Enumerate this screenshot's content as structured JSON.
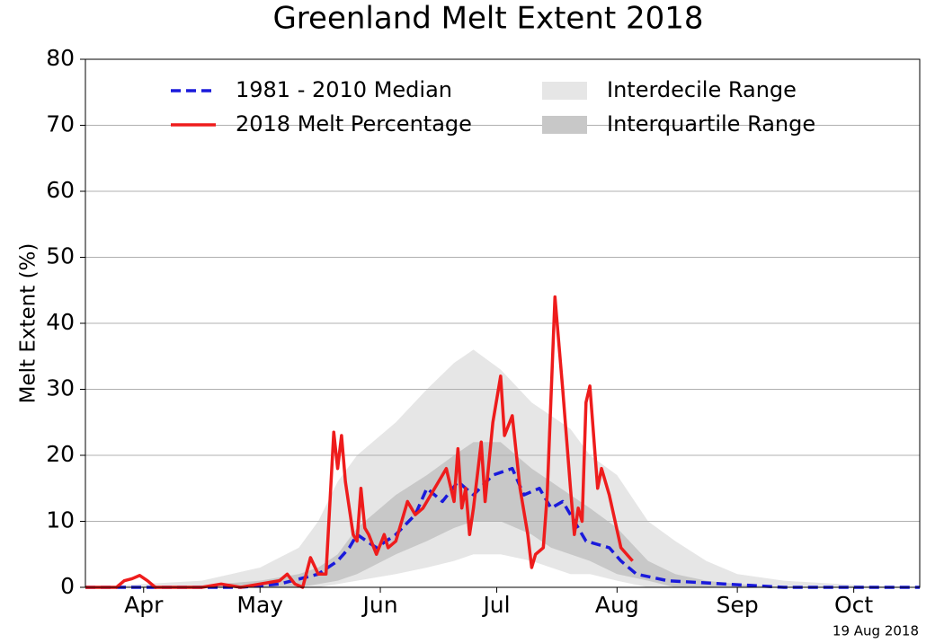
{
  "chart_data": {
    "type": "line",
    "title": "Greenland Melt Extent 2018",
    "y_label": "Melt Extent (%)",
    "annotation": "19 Aug 2018",
    "xlim": [
      90,
      305
    ],
    "xticks": [
      {
        "value": 105,
        "label": "Apr"
      },
      {
        "value": 135,
        "label": "May"
      },
      {
        "value": 166,
        "label": "Jun"
      },
      {
        "value": 196,
        "label": "Jul"
      },
      {
        "value": 227,
        "label": "Aug"
      },
      {
        "value": 258,
        "label": "Sep"
      },
      {
        "value": 288,
        "label": "Oct"
      }
    ],
    "ylim": [
      0,
      80
    ],
    "yticks": [
      0,
      10,
      20,
      30,
      40,
      50,
      60,
      70,
      80
    ],
    "grid": true,
    "legend": "top",
    "series": [
      {
        "name": "1981 - 2010 Median",
        "color": "#1a1adb",
        "style": "dashed",
        "x": [
          90,
          130,
          140,
          150,
          155,
          158,
          160,
          165,
          170,
          175,
          178,
          182,
          186,
          190,
          195,
          200,
          203,
          207,
          210,
          213,
          216,
          219,
          225,
          228,
          232,
          240,
          255,
          270,
          305
        ],
        "values": [
          0,
          0,
          0.5,
          2,
          4,
          6,
          8,
          6,
          8,
          11,
          15,
          13,
          16,
          14,
          17,
          18,
          14,
          15,
          12,
          13,
          10,
          7,
          6,
          4,
          2,
          1,
          0.5,
          0,
          0
        ]
      },
      {
        "name": "2018 Melt Percentage",
        "color": "#ee1c1c",
        "style": "solid",
        "x": [
          90,
          98,
          100,
          102,
          104,
          106,
          108,
          112,
          120,
          125,
          130,
          135,
          140,
          142,
          144,
          146,
          148,
          150,
          152,
          154,
          155,
          156,
          157,
          159,
          160,
          161,
          162,
          163,
          165,
          167,
          168,
          170,
          173,
          175,
          177,
          180,
          183,
          185,
          186,
          187,
          188,
          189,
          190,
          192,
          193,
          195,
          197,
          198,
          200,
          202,
          204,
          205,
          206,
          208,
          209,
          211,
          213,
          215,
          216,
          217,
          218,
          219,
          220,
          222,
          223,
          225,
          228,
          231
        ],
        "values": [
          0,
          0,
          1,
          1.3,
          1.8,
          1,
          0,
          0,
          0,
          0.5,
          0,
          0.5,
          1,
          2,
          0.5,
          0,
          4.5,
          2,
          2,
          23.5,
          18,
          23,
          16,
          8,
          7,
          15,
          9,
          8,
          5,
          8,
          6,
          7,
          13,
          11,
          12,
          15,
          18,
          13,
          21,
          12,
          15,
          8,
          12,
          22,
          13,
          25,
          32,
          23,
          26,
          15,
          8,
          3,
          5,
          6,
          14,
          44,
          30,
          15,
          8,
          12,
          10,
          28,
          30.5,
          15,
          18,
          14,
          6,
          4
        ]
      },
      {
        "name": "Interdecile Range",
        "color": "#e6e6e6",
        "style": "band",
        "x": [
          90,
          120,
          135,
          145,
          150,
          155,
          160,
          170,
          178,
          185,
          190,
          197,
          205,
          210,
          215,
          220,
          227,
          235,
          242,
          250,
          258,
          270,
          290,
          305
        ],
        "high": [
          0,
          1,
          3,
          6,
          10,
          16,
          20,
          25,
          30,
          34,
          36,
          33,
          28,
          26,
          24,
          20,
          17,
          10,
          7,
          4,
          2,
          1,
          0.3,
          0
        ],
        "low": [
          0,
          0,
          0,
          0,
          0,
          0.5,
          1,
          2,
          3,
          4,
          5,
          5,
          4,
          3,
          2,
          2,
          1,
          0,
          0,
          0,
          0,
          0,
          0,
          0
        ]
      },
      {
        "name": "Interquartile Range",
        "color": "#c8c8c8",
        "style": "band",
        "x": [
          90,
          120,
          135,
          145,
          150,
          155,
          160,
          170,
          178,
          185,
          190,
          197,
          205,
          210,
          215,
          220,
          227,
          235,
          242,
          250,
          258,
          270,
          290,
          305
        ],
        "high": [
          0,
          0.3,
          1,
          2,
          3,
          5,
          9,
          14,
          17,
          20,
          22,
          22,
          18,
          16,
          14,
          12,
          9,
          4,
          2,
          1,
          0.5,
          0,
          0,
          0
        ],
        "low": [
          0,
          0,
          0,
          0,
          0.5,
          1,
          2,
          5,
          7,
          9,
          10,
          10,
          8,
          6,
          5,
          4,
          2,
          1,
          0,
          0,
          0,
          0,
          0,
          0
        ]
      }
    ]
  }
}
